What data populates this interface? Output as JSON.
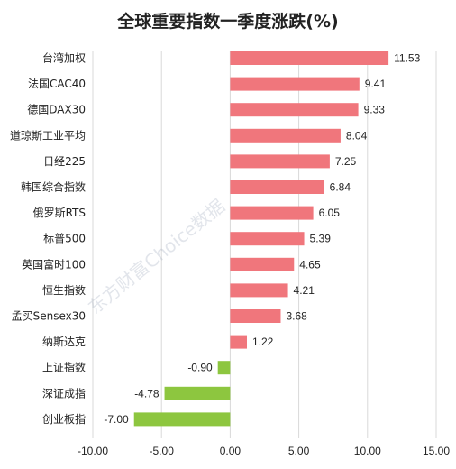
{
  "chart_data": {
    "type": "bar",
    "orientation": "horizontal",
    "title": "全球重要指数一季度涨跌(%)",
    "categories": [
      "台湾加权",
      "法国CAC40",
      "德国DAX30",
      "道琼斯工业平均",
      "日经225",
      "韩国综合指数",
      "俄罗斯RTS",
      "标普500",
      "英国富时100",
      "恒生指数",
      "孟买Sensex30",
      "纳斯达克",
      "上证指数",
      "深证成指",
      "创业板指"
    ],
    "values": [
      11.53,
      9.41,
      9.33,
      8.04,
      7.25,
      6.84,
      6.05,
      5.39,
      4.65,
      4.21,
      3.68,
      1.22,
      -0.9,
      -4.78,
      -7.0
    ],
    "value_labels": [
      "11.53",
      "9.41",
      "9.33",
      "8.04",
      "7.25",
      "6.84",
      "6.05",
      "5.39",
      "4.65",
      "4.21",
      "3.68",
      "1.22",
      "-0.90",
      "-4.78",
      "-7.00"
    ],
    "xlim": [
      -10,
      15
    ],
    "x_ticks": [
      -10,
      -5,
      0,
      5,
      10,
      15
    ],
    "x_tick_labels": [
      "-10.00",
      "-5.00",
      "0.00",
      "5.00",
      "10.00",
      "15.00"
    ],
    "grid": true,
    "colors": {
      "positive": "#f0767c",
      "negative": "#8dc63f",
      "grid": "#d9d9d9",
      "text": "#222222"
    },
    "watermark": "东方财富Choice数据"
  }
}
